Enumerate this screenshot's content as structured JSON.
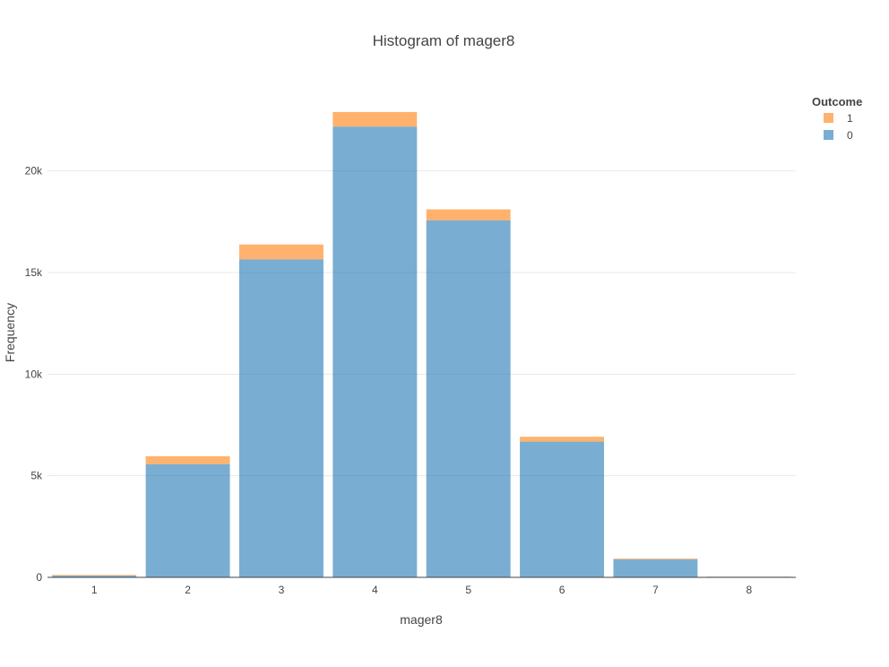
{
  "chart_data": {
    "type": "bar",
    "barmode": "stack",
    "title": "Histogram of mager8",
    "xlabel": "mager8",
    "ylabel": "Frequency",
    "categories": [
      "1",
      "2",
      "3",
      "4",
      "5",
      "6",
      "7",
      "8"
    ],
    "series": [
      {
        "name": "0",
        "color": "#1f77b4",
        "values": [
          80,
          5570,
          15650,
          22180,
          17570,
          6680,
          880,
          30
        ]
      },
      {
        "name": "1",
        "color": "#ff7f0e",
        "values": [
          40,
          390,
          730,
          720,
          540,
          240,
          40,
          5
        ]
      }
    ],
    "ylim": [
      0,
      24000
    ],
    "yticks": [
      0,
      5000,
      10000,
      15000,
      20000
    ],
    "ytick_labels": [
      "0",
      "5k",
      "10k",
      "15k",
      "20k"
    ],
    "grid": true,
    "legend": {
      "title": "Outcome",
      "placement": "top-right",
      "order": [
        "1",
        "0"
      ]
    },
    "opacity": 0.6
  }
}
